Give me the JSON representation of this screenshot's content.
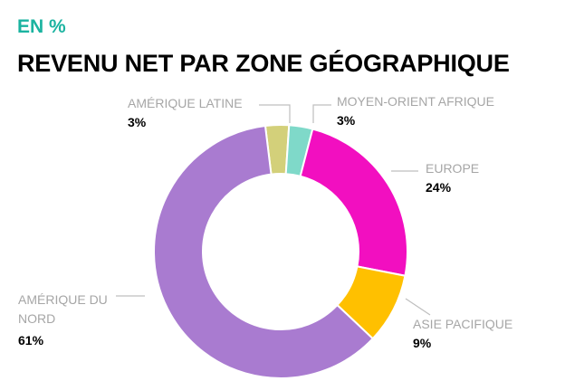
{
  "header": {
    "unit": "EN %",
    "title": "REVENU NET PAR ZONE GÉOGRAPHIQUE"
  },
  "chart_data": {
    "type": "pie",
    "donut": true,
    "categories": [
      "AMÉRIQUE LATINE",
      "MOYEN-ORIENT AFRIQUE",
      "EUROPE",
      "ASIE PACIFIQUE",
      "AMÉRIQUE DU NORD"
    ],
    "values": [
      3,
      3,
      24,
      9,
      61
    ],
    "value_labels": [
      "3%",
      "3%",
      "24%",
      "9%",
      "61%"
    ],
    "colors": [
      "#d3d07a",
      "#7fd9c9",
      "#f20fc0",
      "#ffc000",
      "#a97bd0"
    ],
    "title": "REVENU NET PAR ZONE GÉOGRAPHIQUE",
    "legend": "none"
  }
}
